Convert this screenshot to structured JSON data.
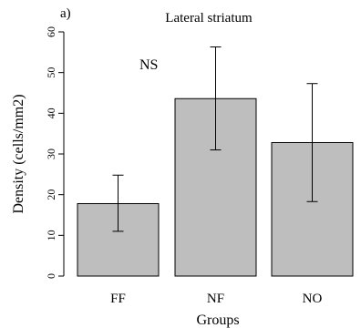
{
  "chart_data": {
    "type": "bar",
    "panel_label": "a)",
    "title": "Lateral striatum",
    "annotation": "NS",
    "xlabel": "Groups",
    "ylabel": "Density (cells/mm2)",
    "categories": [
      "FF",
      "NF",
      "NO"
    ],
    "values": [
      17.8,
      43.6,
      32.8
    ],
    "error_low": [
      11.0,
      31.0,
      18.3
    ],
    "error_high": [
      24.8,
      56.3,
      47.3
    ],
    "ylim": [
      0,
      60
    ],
    "yticks": [
      0,
      10,
      20,
      30,
      40,
      50,
      60
    ],
    "grid": false,
    "bar_color": "#bebebe",
    "bar_stroke": "#000000"
  }
}
